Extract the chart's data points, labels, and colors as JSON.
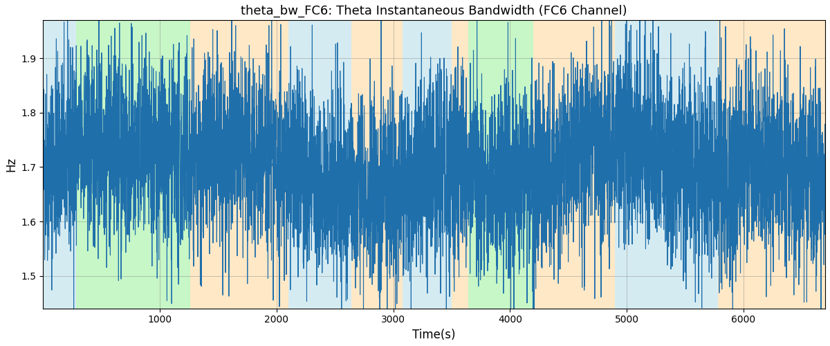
{
  "title": "theta_bw_FC6: Theta Instantaneous Bandwidth (FC6 Channel)",
  "xlabel": "Time(s)",
  "ylabel": "Hz",
  "line_color": "#1f6fab",
  "line_width": 0.8,
  "ylim": [
    1.44,
    1.97
  ],
  "xlim": [
    0,
    6700
  ],
  "bg_regions": [
    {
      "xmin": 0,
      "xmax": 280,
      "color": "#add8e6",
      "alpha": 0.5
    },
    {
      "xmin": 280,
      "xmax": 1260,
      "color": "#90ee90",
      "alpha": 0.5
    },
    {
      "xmin": 1260,
      "xmax": 2100,
      "color": "#ffd9a0",
      "alpha": 0.6
    },
    {
      "xmin": 2100,
      "xmax": 2640,
      "color": "#add8e6",
      "alpha": 0.5
    },
    {
      "xmin": 2640,
      "xmax": 3080,
      "color": "#ffd9a0",
      "alpha": 0.6
    },
    {
      "xmin": 3080,
      "xmax": 3500,
      "color": "#add8e6",
      "alpha": 0.5
    },
    {
      "xmin": 3500,
      "xmax": 3640,
      "color": "#ffd9a0",
      "alpha": 0.6
    },
    {
      "xmin": 3640,
      "xmax": 4200,
      "color": "#90ee90",
      "alpha": 0.5
    },
    {
      "xmin": 4200,
      "xmax": 4900,
      "color": "#ffd9a0",
      "alpha": 0.6
    },
    {
      "xmin": 4900,
      "xmax": 5780,
      "color": "#add8e6",
      "alpha": 0.5
    },
    {
      "xmin": 5780,
      "xmax": 6700,
      "color": "#ffd9a0",
      "alpha": 0.6
    }
  ],
  "seed": 42,
  "n_points": 6700,
  "mean_val": 1.7,
  "std_val": 0.09,
  "title_fontsize": 13,
  "figwidth": 12.0,
  "figheight": 5.0
}
